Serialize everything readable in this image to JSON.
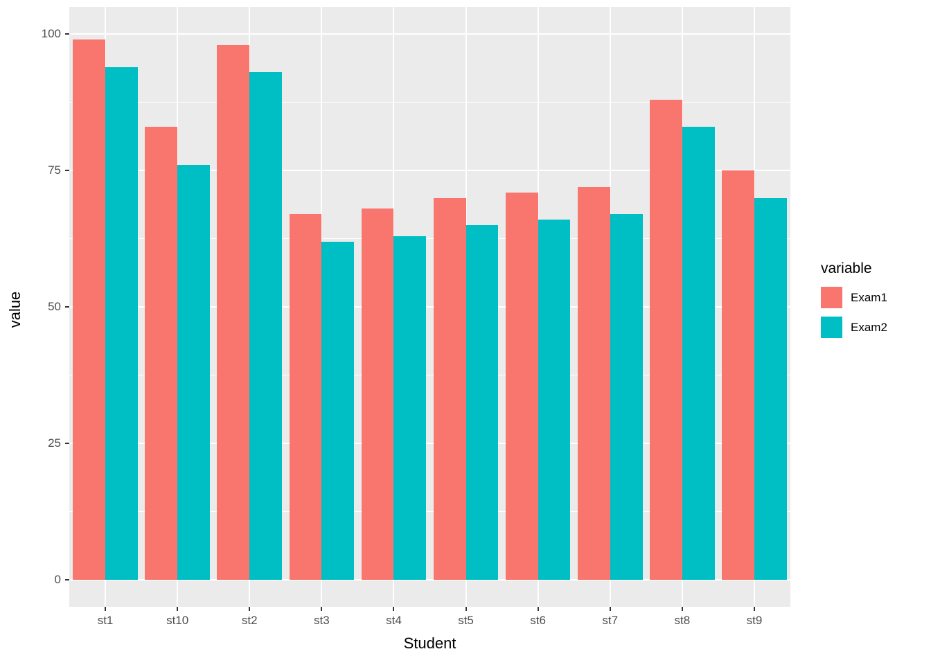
{
  "chart_data": {
    "type": "bar",
    "title": "",
    "xlabel": "Student",
    "ylabel": "value",
    "categories": [
      "st1",
      "st10",
      "st2",
      "st3",
      "st4",
      "st5",
      "st6",
      "st7",
      "st8",
      "st9"
    ],
    "series": [
      {
        "name": "Exam1",
        "color": "#F8766D",
        "values": [
          99,
          83,
          98,
          67,
          68,
          70,
          71,
          72,
          88,
          75
        ]
      },
      {
        "name": "Exam2",
        "color": "#00BFC4",
        "values": [
          94,
          76,
          93,
          62,
          63,
          65,
          66,
          67,
          83,
          70
        ]
      }
    ],
    "ylim": [
      0,
      100
    ],
    "yticks": [
      0,
      25,
      50,
      75,
      100
    ],
    "yticks_minor": [
      12.5,
      37.5,
      62.5,
      87.5
    ],
    "legend_title": "variable",
    "legend_position": "right",
    "grid": true,
    "bar_layout": "dodge",
    "panel_bg": "#EBEBEB",
    "grid_color": "#FFFFFF",
    "tick_label_color": "#4D4D4D"
  }
}
